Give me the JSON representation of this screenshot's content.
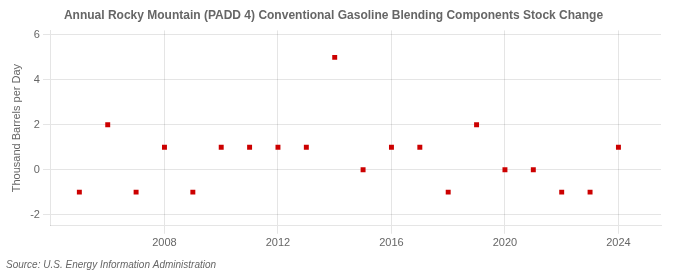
{
  "chart_data": {
    "type": "scatter",
    "title": "Annual Rocky Mountain (PADD 4) Conventional Gasoline Blending Components Stock Change",
    "ylabel": "Thousand Barrels per Day",
    "annotation": "Source: U.S. Energy Information Administration",
    "x": [
      2005,
      2006,
      2007,
      2008,
      2009,
      2010,
      2011,
      2012,
      2013,
      2014,
      2015,
      2016,
      2017,
      2018,
      2019,
      2020,
      2021,
      2022,
      2023,
      2024
    ],
    "values": [
      -1,
      2,
      -1,
      1,
      -1,
      1,
      1,
      1,
      1,
      5,
      0,
      1,
      1,
      -1,
      2,
      0,
      0,
      -1,
      -1,
      1
    ],
    "color": "#cc0000",
    "marker": "square",
    "xlim": [
      2004.0,
      2025.5
    ],
    "xticks": [
      2008,
      2012,
      2016,
      2020,
      2024
    ],
    "ylim": [
      -2.5,
      6.2
    ],
    "yticks": [
      -2,
      0,
      2,
      4,
      6
    ],
    "grid": true
  }
}
